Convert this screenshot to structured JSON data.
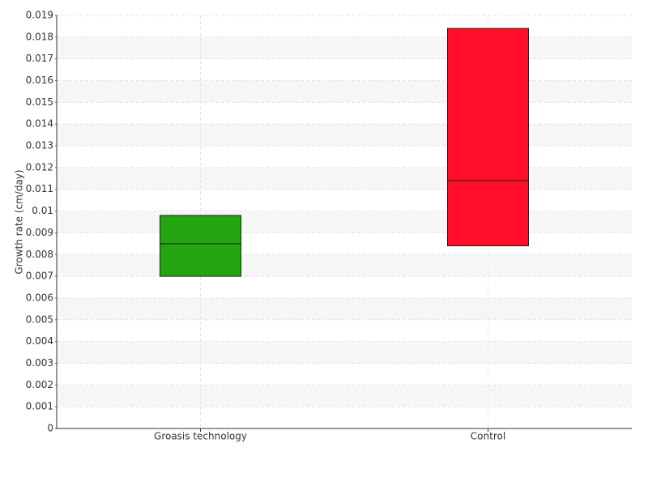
{
  "chart_data": {
    "type": "box",
    "y_label": "Growth rate (cm/day)",
    "categories": [
      "Groasis technology",
      "Control"
    ],
    "low": [
      0.007,
      0.0084
    ],
    "median": [
      0.0085,
      0.0114
    ],
    "high": [
      0.0098,
      0.0184
    ],
    "colors": [
      "#22a50f",
      "#ff0d29"
    ],
    "ylim": [
      0,
      0.019
    ],
    "yticks": [
      0,
      0.001,
      0.002,
      0.003,
      0.004,
      0.005,
      0.006,
      0.007,
      0.008,
      0.009,
      0.01,
      0.011,
      0.012,
      0.013,
      0.014,
      0.015,
      0.016,
      0.017,
      0.018,
      0.019
    ],
    "grid": true
  }
}
